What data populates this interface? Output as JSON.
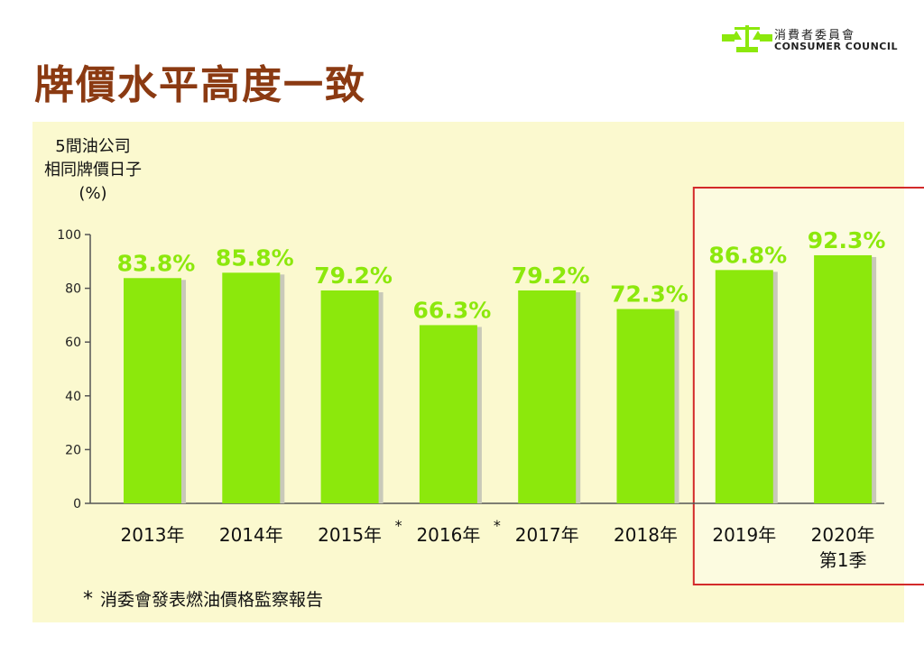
{
  "title": "牌價水平高度一致",
  "logo": {
    "name_cn": "消費者委員會",
    "name_en": "CONSUMER COUNCIL"
  },
  "colors": {
    "title": "#8b3a12",
    "bar": "#8ce80c",
    "bar_label": "#8ce80c",
    "highlight_border": "#d32a2a",
    "panel": "#fbf9cf"
  },
  "chart_data": {
    "type": "bar",
    "ylabel_lines": [
      "5間油公司",
      "相同牌價日子",
      "(%)"
    ],
    "ylim": [
      0,
      100
    ],
    "yticks": [
      0,
      20,
      40,
      60,
      80,
      100
    ],
    "categories": [
      {
        "label": "2013年",
        "sup": ""
      },
      {
        "label": "2014年",
        "sup": ""
      },
      {
        "label": "2015年",
        "sup": "*"
      },
      {
        "label": "2016年",
        "sup": "*"
      },
      {
        "label": "2017年",
        "sup": ""
      },
      {
        "label": "2018年",
        "sup": ""
      },
      {
        "label": "2019年",
        "sup": ""
      },
      {
        "label": "2020年",
        "sub": "第1季",
        "sup": ""
      }
    ],
    "values": [
      83.8,
      85.8,
      79.2,
      66.3,
      79.2,
      72.3,
      86.8,
      92.3
    ],
    "data_labels": [
      "83.8%",
      "85.8%",
      "79.2%",
      "66.3%",
      "79.2%",
      "72.3%",
      "86.8%",
      "92.3%"
    ],
    "highlighted_categories": [
      "2019年",
      "2020年"
    ],
    "grid": false,
    "legend": "none"
  },
  "footnote": {
    "marker": "*",
    "text": "消委會發表燃油價格監察報告"
  }
}
